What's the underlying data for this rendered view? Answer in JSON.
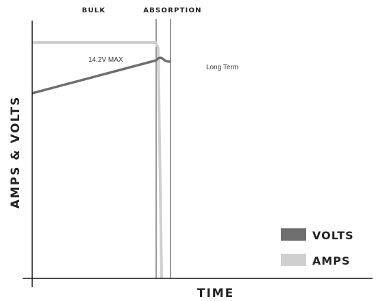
{
  "chart_data": {
    "type": "line",
    "title": "",
    "xlabel": "TIME",
    "ylabel": "AMPS & VOLTS",
    "stages": [
      {
        "label": "BULK"
      },
      {
        "label": "ABSORPTION"
      }
    ],
    "annotations": {
      "max_voltage": "14.2V MAX",
      "float": "Long Term"
    },
    "series": [
      {
        "name": "VOLTS",
        "color": "#6e6e6e"
      },
      {
        "name": "AMPS",
        "color": "#cfcfcf"
      }
    ],
    "legend_position": "bottom-right",
    "grid": false
  }
}
